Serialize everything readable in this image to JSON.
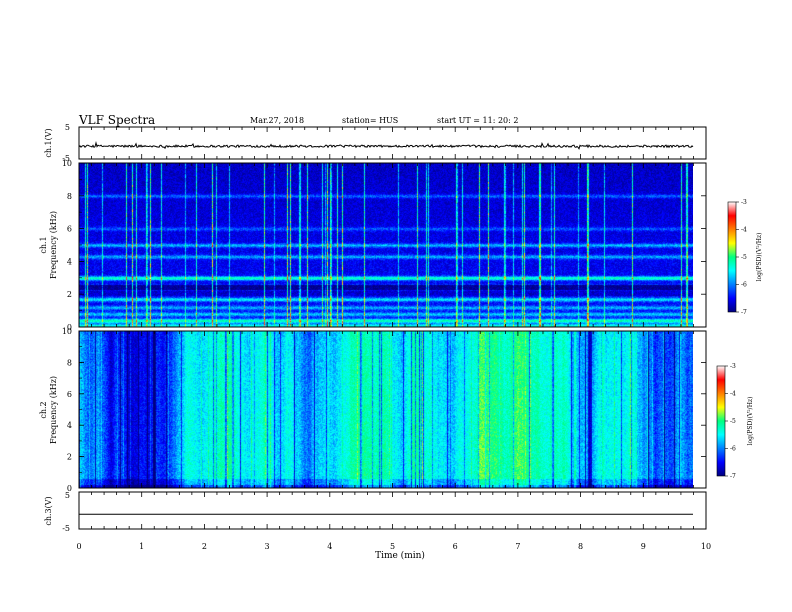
{
  "header": {
    "title": "VLF Spectra",
    "date": "Mar.27, 2018",
    "station": "station= HUS",
    "start_time": "start  UT =   11: 20: 2"
  },
  "chart_data": [
    {
      "type": "line",
      "panel": "ch1-waveform",
      "ylabel": "ch.1(V)",
      "yticks": [
        "5",
        "-5"
      ],
      "ylim": [
        -5,
        5
      ],
      "xlim": [
        0,
        10
      ],
      "trace_level": -1,
      "color": "#000000"
    },
    {
      "type": "heatmap",
      "panel": "ch1-spectrogram",
      "ylabel_top": "ch.1",
      "ylabel": "Frequency  (kHz)",
      "yticks": [
        "0",
        "2",
        "4",
        "6",
        "8",
        "10"
      ],
      "ylim": [
        0,
        10
      ],
      "xlim": [
        0,
        9.85
      ],
      "colorbar": {
        "label": "log(PSD)(V²/Hz)",
        "ticks": [
          "-3",
          "-4",
          "-5",
          "-6",
          "-7"
        ],
        "range": [
          -7,
          -3
        ]
      }
    },
    {
      "type": "heatmap",
      "panel": "ch2-spectrogram",
      "ylabel_top": "ch.2",
      "ylabel": "Frequency  (kHz)",
      "yticks": [
        "0",
        "2",
        "4",
        "6",
        "8",
        "10"
      ],
      "ylim": [
        0,
        10
      ],
      "xlim": [
        0,
        9.85
      ],
      "colorbar": {
        "label": "log(PSD)(V²/Hz)",
        "ticks": [
          "-3",
          "-4",
          "-5",
          "-6",
          "-7"
        ],
        "range": [
          -7,
          -3
        ]
      }
    },
    {
      "type": "line",
      "panel": "ch3-waveform",
      "ylabel": "ch.3(V)",
      "yticks": [
        "5",
        "-5"
      ],
      "ylim": [
        -5,
        5
      ],
      "xlim": [
        0,
        10
      ],
      "trace_level": -1,
      "color": "#000000"
    }
  ],
  "xaxis": {
    "label": "Time  (min)",
    "ticks": [
      "0",
      "1",
      "2",
      "3",
      "4",
      "5",
      "6",
      "7",
      "8",
      "9",
      "10"
    ]
  }
}
